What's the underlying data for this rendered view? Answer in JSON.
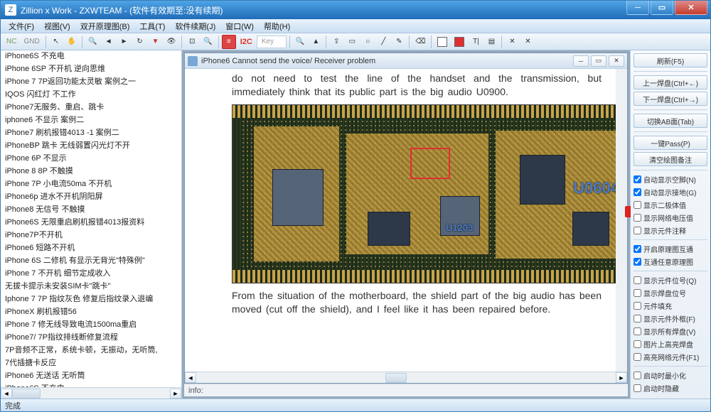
{
  "window": {
    "title": "Zillion x Work - ZXWTEAM - (软件有效期至:没有续期)",
    "icon_letter": "Z"
  },
  "menus": [
    "文件(F)",
    "视图(V)",
    "双开原理图(B)",
    "工具(T)",
    "软件续期(J)",
    "窗口(W)",
    "帮助(H)"
  ],
  "toolbar": {
    "nc": "NC",
    "gnd": "GND",
    "i2c": "I2C",
    "key": "Key"
  },
  "left_items": [
    "iPhone6S 不充电",
    "iPhone 6SP 不开机 逆向思维",
    "iPhone 7 7P返回功能太灵敏 案例之一",
    "IQOS 闪红灯 不工作",
    "iPhone7无服务、重启、跳卡",
    "iphone6 不显示 案例二",
    "iPhone7 刷机报错4013 -1 案例二",
    "iPhoneBP 跳卡 无线弱置闪光灯不开",
    "iPhone 6P 不显示",
    "iPhone 8 8P 不触摸",
    "iPhone 7P 小电流50ma 不开机",
    "iPhone6p 进水不开机阴阳屏",
    "iPhone8 无信号 不触摸",
    "iPhone6S 无限重启刷机报错4013报资料",
    "iPhone7P不开机",
    "iPhone6 短路不开机",
    "iPhone 6S 二修机 有显示无背光\"特殊例\"",
    "iPhone 7 不开机 细节定成收入",
    "无拔卡提示未安装SIM卡\"跳卡\"",
    "Iphone 7 7P 指纹灰色 修复后指纹录入退编",
    "iPhoneX 刷机报错56",
    "iPhone 7 修无线导致电流1500ma重启",
    "iPhone7/ 7P指纹排线断修复流程",
    "7P音频不正常，系统卡顿，无振动，无听筒,",
    "7代插搪卡反应",
    "iPhone6 无送话 无听筒",
    "iPhone6S 不充电"
  ],
  "doc": {
    "title": "iPhone6 Cannot send the voice/ Receiver problem",
    "para1_top": "do not need to test the line of the handset and the transmission, but immediately think that its public part is the big audio U0900.",
    "para2": "From the situation of the motherboard, the shield part of the big audio has been moved (cut off the shield), and I feel like it has been repaired before."
  },
  "pcb": {
    "label_big": "U0604",
    "label_small": "U1203"
  },
  "right": {
    "btn_refresh": "刷新(F5)",
    "btn_prev": "上一焊盘(Ctrl+←)",
    "btn_next": "下一焊盘(Ctrl+→)",
    "btn_swap": "切换AB面(Tab)",
    "btn_pass": "一键Pass(P)",
    "btn_clear": "清空绘图备注",
    "chk1": "自动显示空脚(N)",
    "chk2": "自动显示接地(G)",
    "chk3": "显示二极体值",
    "chk4": "显示网络电压值",
    "chk5": "显示元件注释",
    "chk6": "开启原理图互通",
    "chk7": "互通任意原理图",
    "chk8": "显示元件位号(Q)",
    "chk9": "显示焊盘位号",
    "chk10": "元件填充",
    "chk11": "显示元件外框(F)",
    "chk12": "显示所有焊盘(V)",
    "chk13": "图片上高亮焊盘",
    "chk14": "高亮网络元件(F1)",
    "chk15": "启动时最小化",
    "chk16": "启动时隐藏"
  },
  "info_label": "info:",
  "status": "完成",
  "colors": {
    "red": "#e03030",
    "black": "#000000",
    "white": "#ffffff"
  }
}
